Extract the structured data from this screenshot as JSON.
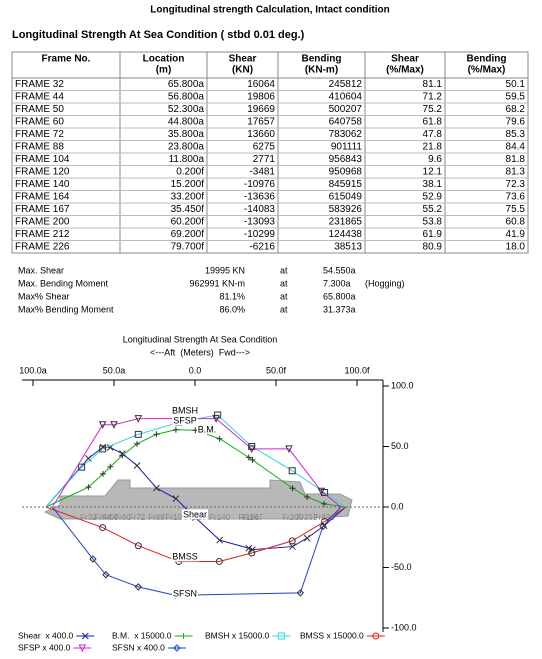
{
  "header": {
    "title": "Longitudinal strength Calculation, Intact condition",
    "subtitle": "Longitudinal Strength At Sea Condition ( stbd 0.01 deg.)"
  },
  "table": {
    "columns": [
      [
        "Frame No."
      ],
      [
        "Location",
        "(m)"
      ],
      [
        "Shear",
        "(KN)"
      ],
      [
        "Bending",
        "(KN-m)"
      ],
      [
        "Shear",
        "(%/Max)"
      ],
      [
        "Bending",
        "(%/Max)"
      ]
    ],
    "rows": [
      [
        "FRAME 32",
        "65.800a",
        "16064",
        "245812",
        "81.1",
        "50.1"
      ],
      [
        "FRAME 44",
        "56.800a",
        "19806",
        "410604",
        "71.2",
        "59.5"
      ],
      [
        "FRAME 50",
        "52.300a",
        "19669",
        "500207",
        "75.2",
        "68.2"
      ],
      [
        "FRAME 60",
        "44.800a",
        "17657",
        "640758",
        "61.8",
        "79.6"
      ],
      [
        "FRAME 72",
        "35.800a",
        "13660",
        "783062",
        "47.8",
        "85.3"
      ],
      [
        "FRAME 88",
        "23.800a",
        "6275",
        "901111",
        "21.8",
        "84.4"
      ],
      [
        "FRAME 104",
        "11.800a",
        "2771",
        "956843",
        "9.6",
        "81.8"
      ],
      [
        "FRAME 120",
        "0.200f",
        "-3481",
        "950968",
        "12.1",
        "81.3"
      ],
      [
        "FRAME 140",
        "15.200f",
        "-10976",
        "845915",
        "38.1",
        "72.3"
      ],
      [
        "FRAME 164",
        "33.200f",
        "-13636",
        "615049",
        "52.9",
        "73.6"
      ],
      [
        "FRAME 167",
        "35.450f",
        "-14083",
        "583926",
        "55.2",
        "75.5"
      ],
      [
        "FRAME 200",
        "60.200f",
        "-13093",
        "231865",
        "53.8",
        "60.8"
      ],
      [
        "FRAME 212",
        "69.200f",
        "-10299",
        "124438",
        "61.9",
        "41.9"
      ],
      [
        "FRAME 226",
        "79.700f",
        "-6216",
        "38513",
        "80.9",
        "18.0"
      ]
    ]
  },
  "summary": [
    [
      "Max. Shear",
      "19995 KN",
      "at",
      "54.550a"
    ],
    [
      "Max. Bending Moment",
      "962991 KN-m",
      "at",
      "7.300a",
      "(Hogging)"
    ],
    [
      "Max% Shear",
      "81.1%",
      "at",
      "65.800a"
    ],
    [
      "Max% Bending Moment",
      "86.0%",
      "at",
      "31.373a"
    ]
  ],
  "chart_data": {
    "type": "line",
    "title": "Longitudinal Strength At Sea Condition",
    "subtitle": "<---Aft  (Meters)  Fwd--->",
    "xlim": [
      -100,
      100
    ],
    "xticks": [
      {
        "value": -100,
        "label": "100.0a"
      },
      {
        "value": -50,
        "label": "50.0a"
      },
      {
        "value": 0,
        "label": "0.0"
      },
      {
        "value": 50,
        "label": "50.0f"
      },
      {
        "value": 100,
        "label": "100.0f"
      }
    ],
    "ylim": [
      -100,
      100
    ],
    "yticks": [
      {
        "value": 100,
        "label": "100.0"
      },
      {
        "value": 50,
        "label": "50.0"
      },
      {
        "value": 0,
        "label": "0.0"
      },
      {
        "value": -50,
        "label": "-50.0"
      },
      {
        "value": -100,
        "label": "-100.0"
      }
    ],
    "frame_labels": [
      "Fr32",
      "Fr44",
      "Fr50",
      "Fr60",
      "Fr72",
      "Fr88",
      "Fr104",
      "Fr120",
      "Fr140",
      "Fr164",
      "Fr167",
      "Fr200",
      "Fr212",
      "Fr226"
    ],
    "series": [
      {
        "name": "Shear  x 400.0",
        "label": "Shear",
        "color": "#1a1ab8",
        "marker": "x",
        "x": [
          -92,
          -65.8,
          -56.8,
          -52.3,
          -44.8,
          -35.8,
          -23.8,
          -11.8,
          0.2,
          15.2,
          33.2,
          35.45,
          60.2,
          69.2,
          79.7,
          93
        ],
        "values": [
          0,
          40.2,
          49.5,
          49.2,
          44.1,
          34.2,
          15.7,
          6.9,
          -8.7,
          -27.4,
          -34.1,
          -35.2,
          -32.7,
          -25.7,
          -15.5,
          0
        ]
      },
      {
        "name": "B.M.  x 15000.0",
        "label": "B.M.",
        "color": "#10b010",
        "marker": "plus",
        "x": [
          -92,
          -65.8,
          -56.8,
          -52.3,
          -44.8,
          -35.8,
          -23.8,
          -11.8,
          0.2,
          15.2,
          33.2,
          35.45,
          60.2,
          69.2,
          79.7,
          93
        ],
        "values": [
          0,
          16.4,
          27.4,
          33.3,
          42.7,
          52.2,
          60.1,
          63.8,
          63.4,
          56.4,
          41,
          38.9,
          15.5,
          8.3,
          2.6,
          0
        ]
      },
      {
        "name": "BMSH x 15000.0",
        "label": "BMSH",
        "color": "#30d8d8",
        "marker": "square",
        "x": [
          -92,
          -70,
          -57,
          -35,
          -10,
          14,
          35,
          60,
          80,
          93
        ],
        "values": [
          0,
          33,
          48,
          60,
          70,
          76,
          50,
          30,
          12,
          0
        ]
      },
      {
        "name": "BMSS x 15000.0",
        "label": "BMSS",
        "color": "#e02020",
        "marker": "circle",
        "x": [
          -92,
          -57,
          -35,
          -10,
          15,
          35,
          60,
          80,
          93
        ],
        "values": [
          0,
          -17,
          -32,
          -45,
          -45,
          -38,
          -28,
          -12,
          0
        ]
      },
      {
        "name": "SFSP x 400.0",
        "label": "SFSP",
        "color": "#d820d8",
        "marker": "triangle",
        "x": [
          -88,
          -57,
          -50,
          -35,
          13,
          35,
          58,
          78,
          90
        ],
        "values": [
          0,
          68,
          68,
          73,
          73,
          48,
          48,
          13,
          0
        ]
      },
      {
        "name": "SFSN x 400.0",
        "label": "SFSN",
        "color": "#2040d0",
        "marker": "diamond",
        "x": [
          -88,
          -63,
          -55,
          -35,
          -12,
          65,
          79,
          90
        ],
        "values": [
          0,
          -43,
          -56,
          -66,
          -73,
          -71,
          -16,
          0
        ]
      }
    ]
  }
}
